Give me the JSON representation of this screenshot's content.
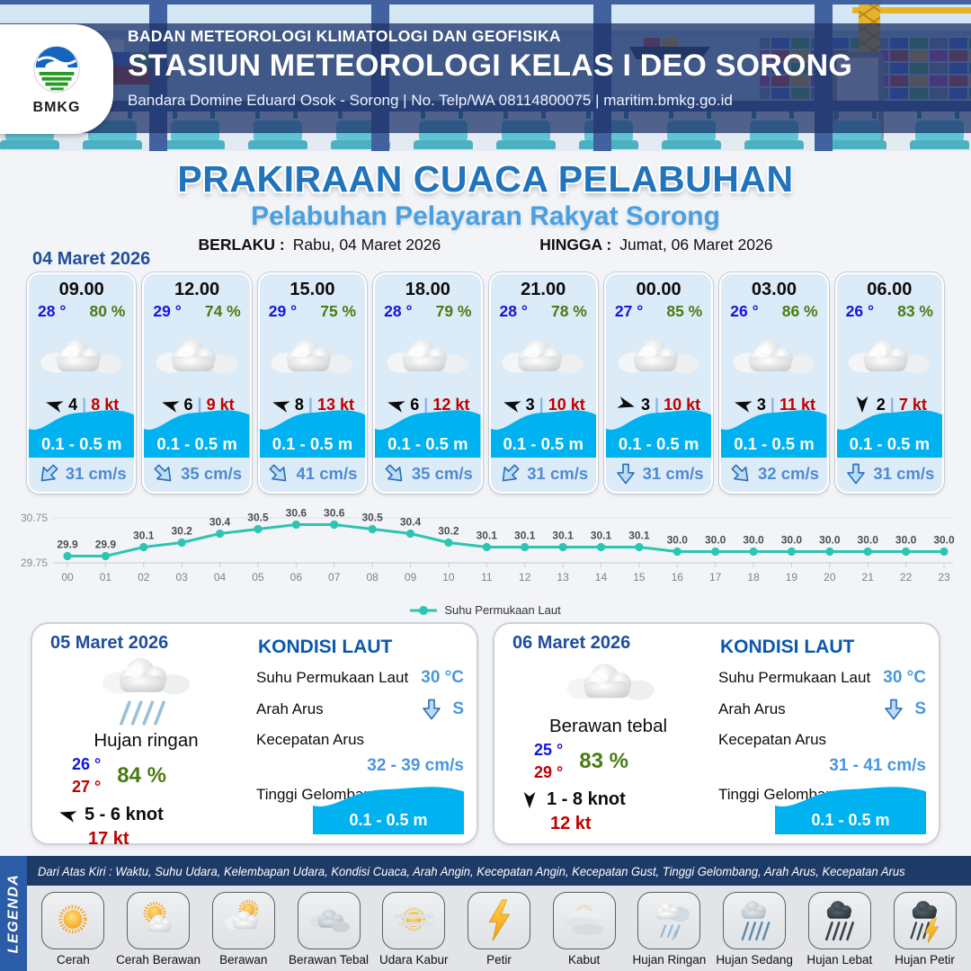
{
  "header": {
    "agency": "BADAN METEOROLOGI KLIMATOLOGI DAN GEOFISIKA",
    "station": "STASIUN METEOROLOGI KELAS I DEO SORONG",
    "address": "Bandara Domine Eduard Osok - Sorong | No. Telp/WA 08114800075 | maritim.bmkg.go.id",
    "logo": "BMKG"
  },
  "title": {
    "main": "PRAKIRAAN CUACA PELABUHAN",
    "subtitle": "Pelabuhan Pelayaran Rakyat Sorong",
    "berlaku_label": "BERLAKU :",
    "berlaku_value": "Rabu, 04 Maret 2026",
    "hingga_label": "HINGGA :",
    "hingga_value": "Jumat, 06 Maret 2026"
  },
  "forecast_date": "04 Maret 2026",
  "ui": {
    "sep": "|"
  },
  "cards": [
    {
      "time": "09.00",
      "temp": "28 °",
      "humidity": "80 %",
      "weather": "berawan",
      "wind": "4",
      "gust": "8 kt",
      "wind_deg": 196,
      "wave": "0.1 - 0.5 m",
      "current": "31 cm/s",
      "current_deg": 45
    },
    {
      "time": "12.00",
      "temp": "29 °",
      "humidity": "74 %",
      "weather": "berawan",
      "wind": "6",
      "gust": "9 kt",
      "wind_deg": 196,
      "wave": "0.1 - 0.5 m",
      "current": "35 cm/s",
      "current_deg": -45
    },
    {
      "time": "15.00",
      "temp": "29 °",
      "humidity": "75 %",
      "weather": "berawan",
      "wind": "8",
      "gust": "13 kt",
      "wind_deg": 196,
      "wave": "0.1 - 0.5 m",
      "current": "41 cm/s",
      "current_deg": -45
    },
    {
      "time": "18.00",
      "temp": "28 °",
      "humidity": "79 %",
      "weather": "berawan",
      "wind": "6",
      "gust": "12 kt",
      "wind_deg": 196,
      "wave": "0.1 - 0.5 m",
      "current": "35 cm/s",
      "current_deg": -45
    },
    {
      "time": "21.00",
      "temp": "28 °",
      "humidity": "78 %",
      "weather": "berawan",
      "wind": "3",
      "gust": "10 kt",
      "wind_deg": 196,
      "wave": "0.1 - 0.5 m",
      "current": "31 cm/s",
      "current_deg": 45
    },
    {
      "time": "00.00",
      "temp": "27 °",
      "humidity": "85 %",
      "weather": "berawan",
      "wind": "3",
      "gust": "10 kt",
      "wind_deg": 16,
      "wave": "0.1 - 0.5 m",
      "current": "31 cm/s",
      "current_deg": 0
    },
    {
      "time": "03.00",
      "temp": "26 °",
      "humidity": "86 %",
      "weather": "berawan",
      "wind": "3",
      "gust": "11 kt",
      "wind_deg": 196,
      "wave": "0.1 - 0.5 m",
      "current": "32 cm/s",
      "current_deg": -45
    },
    {
      "time": "06.00",
      "temp": "26 °",
      "humidity": "83 %",
      "weather": "berawan",
      "wind": "2",
      "gust": "7 kt",
      "wind_deg": 90,
      "wave": "0.1 - 0.5 m",
      "current": "31 cm/s",
      "current_deg": 0
    }
  ],
  "chart_data": {
    "type": "line",
    "x": [
      "00",
      "01",
      "02",
      "03",
      "04",
      "05",
      "06",
      "07",
      "08",
      "09",
      "10",
      "11",
      "12",
      "13",
      "14",
      "15",
      "16",
      "17",
      "18",
      "19",
      "20",
      "21",
      "22",
      "23"
    ],
    "series": [
      {
        "name": "Suhu Permukaan Laut",
        "values": [
          29.9,
          29.9,
          30.1,
          30.2,
          30.4,
          30.5,
          30.6,
          30.6,
          30.5,
          30.4,
          30.2,
          30.1,
          30.1,
          30.1,
          30.1,
          30.1,
          30.0,
          30.0,
          30.0,
          30.0,
          30.0,
          30.0,
          30.0,
          30.0
        ]
      }
    ],
    "ylim": [
      29.75,
      30.75
    ],
    "yticks": [
      30.75,
      29.75
    ],
    "xlabel": "",
    "ylabel": "",
    "grid": true,
    "legend": "Suhu Permukaan Laut",
    "legend_position": "bottom-center",
    "color": "#2cc5b2"
  },
  "sea_labels": {
    "heading": "KONDISI LAUT",
    "sst": "Suhu Permukaan Laut",
    "dir": "Arah Arus",
    "speed": "Kecepatan Arus",
    "wave": "Tinggi Gelombang"
  },
  "days": [
    {
      "date": "05 Maret 2026",
      "condition": "Hujan ringan",
      "temp_min": "26 °",
      "temp_max": "27 °",
      "humidity": "84 %",
      "wind": "5 - 6 knot",
      "gust": "17 kt",
      "wind_deg": 196,
      "sea": {
        "sst": "30 °C",
        "dir": "S",
        "dir_deg": 0,
        "speed": "32 - 39 cm/s",
        "wave": "0.1 - 0.5 m"
      }
    },
    {
      "date": "06 Maret 2026",
      "condition": "Berawan tebal",
      "temp_min": "25 °",
      "temp_max": "29 °",
      "humidity": "83 %",
      "wind": "1 - 8 knot",
      "gust": "12 kt",
      "wind_deg": 90,
      "sea": {
        "sst": "30 °C",
        "dir": "S",
        "dir_deg": 0,
        "speed": "31 - 41 cm/s",
        "wave": "0.1 - 0.5 m"
      }
    }
  ],
  "legend": {
    "label": "LEGENDA",
    "description": "Dari Atas Kiri : Waktu, Suhu Udara, Kelembapan Udara, Kondisi Cuaca, Arah Angin, Kecepatan Angin, Kecepatan Gust, Tinggi Gelombang, Arah Arus, Kecepatan Arus",
    "items": [
      {
        "icon": "cerah",
        "label": "Cerah"
      },
      {
        "icon": "cerah-berawan",
        "label": "Cerah Berawan"
      },
      {
        "icon": "berawan",
        "label": "Berawan"
      },
      {
        "icon": "berawan-tebal",
        "label": "Berawan Tebal"
      },
      {
        "icon": "udara-kabur",
        "label": "Udara Kabur"
      },
      {
        "icon": "petir",
        "label": "Petir"
      },
      {
        "icon": "kabut",
        "label": "Kabut"
      },
      {
        "icon": "hujan-ringan",
        "label": "Hujan Ringan"
      },
      {
        "icon": "hujan-sedang",
        "label": "Hujan Sedang"
      },
      {
        "icon": "hujan-lebat",
        "label": "Hujan Lebat"
      },
      {
        "icon": "hujan-petir",
        "label": "Hujan Petir"
      }
    ]
  },
  "colors": {
    "wave_cyan": "#00b2ef",
    "chart_teal": "#2cc5b2",
    "title_blue": "#2173bc",
    "subtitle_blue": "#49a0e1",
    "temp_blue": "#1414e0",
    "humidity_green": "#4a7c12",
    "gust_red": "#c00000",
    "current_blue": "#4f8bd0",
    "header_navy": "#1d3168"
  }
}
